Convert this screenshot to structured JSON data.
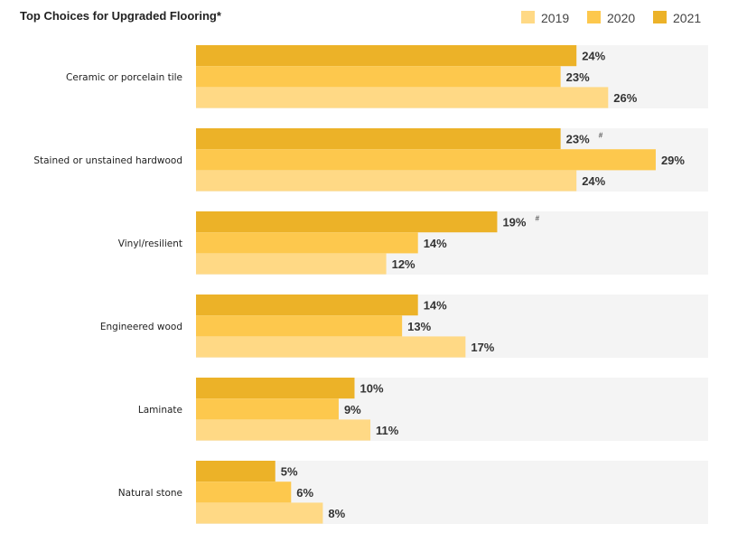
{
  "chart_data": {
    "type": "bar",
    "orientation": "horizontal",
    "title": "Top Choices for Upgraded Flooring*",
    "xlim": [
      0,
      100
    ],
    "legend_position": "top-right",
    "legend": [
      "2019",
      "2020",
      "2021"
    ],
    "categories": [
      "Ceramic or porcelain tile",
      "Stained or unstained hardwood",
      "Vinyl/resilient",
      "Engineered wood",
      "Laminate",
      "Natural stone"
    ],
    "series": [
      {
        "name": "2021",
        "color": "#ECB228",
        "values": [
          24,
          23,
          19,
          14,
          10,
          5
        ],
        "notes": [
          "",
          "#",
          "#",
          "",
          "",
          ""
        ]
      },
      {
        "name": "2020",
        "color": "#FDC84D",
        "values": [
          23,
          29,
          14,
          13,
          9,
          6
        ],
        "notes": [
          "",
          "",
          "",
          "",
          "",
          ""
        ]
      },
      {
        "name": "2019",
        "color": "#FFD985",
        "values": [
          26,
          24,
          12,
          17,
          11,
          8
        ],
        "notes": [
          "",
          "",
          "",
          "",
          "",
          ""
        ]
      }
    ],
    "value_suffix": "%",
    "group_background": "#F4F4F4"
  }
}
